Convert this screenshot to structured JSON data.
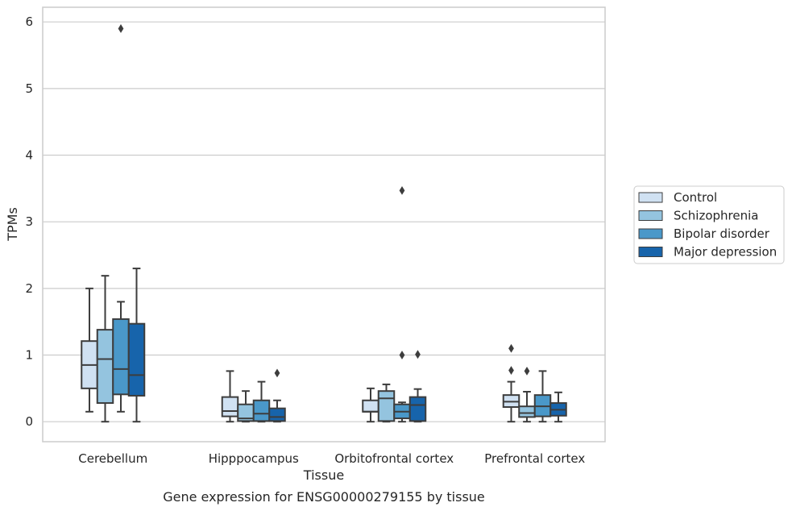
{
  "chart_data": {
    "type": "box",
    "categories": [
      "Cerebellum",
      "Hipppocampus",
      "Orbitofrontal cortex",
      "Prefrontal cortex"
    ],
    "xlabel": "Tissue",
    "ylabel": "TPMs",
    "caption": "Gene expression for ENSG00000279155 by tissue",
    "ylim": [
      -0.3,
      6.22
    ],
    "yticks": [
      0,
      1,
      2,
      3,
      4,
      5,
      6
    ],
    "grid": "horizontal",
    "legend_position": "right",
    "series": [
      {
        "name": "Control",
        "color": "#d0e1f2",
        "boxes": [
          {
            "whislo": 0.15,
            "q1": 0.5,
            "med": 0.85,
            "q3": 1.21,
            "whishi": 2.0,
            "fliers": []
          },
          {
            "whislo": 0.0,
            "q1": 0.08,
            "med": 0.16,
            "q3": 0.37,
            "whishi": 0.76,
            "fliers": []
          },
          {
            "whislo": 0.0,
            "q1": 0.15,
            "med": 0.15,
            "q3": 0.32,
            "whishi": 0.5,
            "fliers": []
          },
          {
            "whislo": 0.0,
            "q1": 0.22,
            "med": 0.3,
            "q3": 0.4,
            "whishi": 0.6,
            "fliers": [
              0.77,
              1.1
            ]
          }
        ]
      },
      {
        "name": "Schizophrenia",
        "color": "#94c4df",
        "boxes": [
          {
            "whislo": 0.0,
            "q1": 0.28,
            "med": 0.94,
            "q3": 1.38,
            "whishi": 2.19,
            "fliers": []
          },
          {
            "whislo": 0.0,
            "q1": 0.01,
            "med": 0.05,
            "q3": 0.26,
            "whishi": 0.46,
            "fliers": []
          },
          {
            "whislo": 0.0,
            "q1": 0.01,
            "med": 0.35,
            "q3": 0.46,
            "whishi": 0.56,
            "fliers": []
          },
          {
            "whislo": 0.0,
            "q1": 0.07,
            "med": 0.13,
            "q3": 0.23,
            "whishi": 0.45,
            "fliers": [
              0.76
            ]
          }
        ]
      },
      {
        "name": "Bipolar disorder",
        "color": "#4a98c9",
        "boxes": [
          {
            "whislo": 0.15,
            "q1": 0.41,
            "med": 0.79,
            "q3": 1.54,
            "whishi": 1.8,
            "fliers": [
              5.9
            ]
          },
          {
            "whislo": 0.0,
            "q1": 0.01,
            "med": 0.12,
            "q3": 0.32,
            "whishi": 0.6,
            "fliers": []
          },
          {
            "whislo": 0.0,
            "q1": 0.05,
            "med": 0.15,
            "q3": 0.26,
            "whishi": 0.29,
            "fliers": [
              1.0,
              3.47
            ]
          },
          {
            "whislo": 0.0,
            "q1": 0.08,
            "med": 0.23,
            "q3": 0.4,
            "whishi": 0.76,
            "fliers": []
          }
        ]
      },
      {
        "name": "Major depression",
        "color": "#1764ab",
        "boxes": [
          {
            "whislo": 0.0,
            "q1": 0.39,
            "med": 0.7,
            "q3": 1.47,
            "whishi": 2.3,
            "fliers": []
          },
          {
            "whislo": 0.0,
            "q1": 0.01,
            "med": 0.07,
            "q3": 0.2,
            "whishi": 0.32,
            "fliers": [
              0.73
            ]
          },
          {
            "whislo": 0.0,
            "q1": 0.01,
            "med": 0.25,
            "q3": 0.37,
            "whishi": 0.49,
            "fliers": [
              1.01
            ]
          },
          {
            "whislo": 0.0,
            "q1": 0.09,
            "med": 0.18,
            "q3": 0.28,
            "whishi": 0.44,
            "fliers": []
          }
        ]
      }
    ]
  }
}
